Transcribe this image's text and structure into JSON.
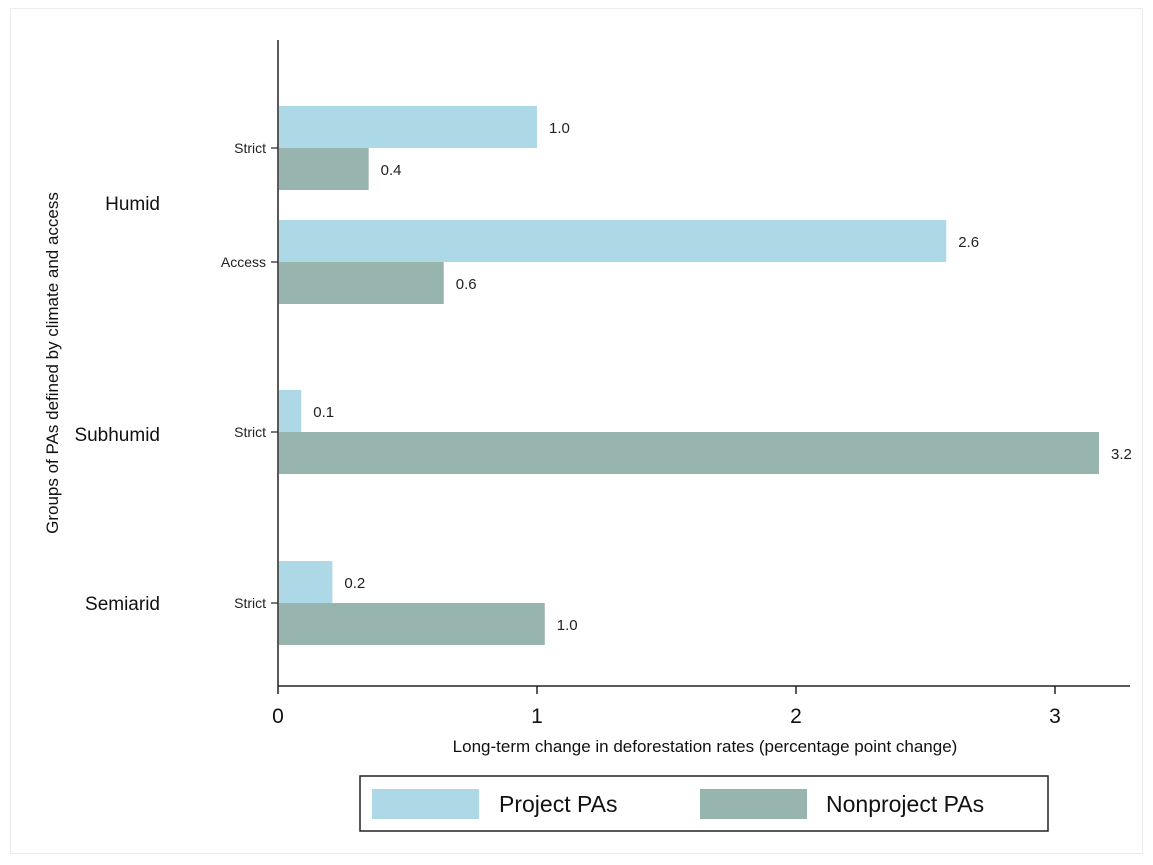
{
  "chart_data": {
    "type": "bar",
    "orientation": "horizontal",
    "xlabel": "Long-term change in deforestation rates (percentage point change)",
    "ylabel": "Groups of PAs defined by climate and access",
    "xlim": [
      0,
      3.3
    ],
    "xticks": [
      "0",
      "1",
      "2",
      "3"
    ],
    "grid": false,
    "legend_position": "bottom",
    "colors": {
      "project": "#add8e6",
      "nonproject": "#98b4af"
    },
    "series": [
      {
        "name": "Project PAs",
        "key": "project"
      },
      {
        "name": "Nonproject PAs",
        "key": "nonproject"
      }
    ],
    "groups": [
      {
        "label": "Humid",
        "subgroups": [
          {
            "label": "Strict",
            "project": 1.0,
            "nonproject": 0.35,
            "project_label": "1.0",
            "nonproject_label": "0.4"
          },
          {
            "label": "Access",
            "project": 2.58,
            "nonproject": 0.64,
            "project_label": "2.6",
            "nonproject_label": "0.6"
          }
        ]
      },
      {
        "label": "Subhumid",
        "subgroups": [
          {
            "label": "Strict",
            "project": 0.09,
            "nonproject": 3.17,
            "project_label": "0.1",
            "nonproject_label": "3.2"
          }
        ]
      },
      {
        "label": "Semiarid",
        "subgroups": [
          {
            "label": "Strict",
            "project": 0.21,
            "nonproject": 1.03,
            "project_label": "0.2",
            "nonproject_label": "1.0"
          }
        ]
      }
    ]
  }
}
